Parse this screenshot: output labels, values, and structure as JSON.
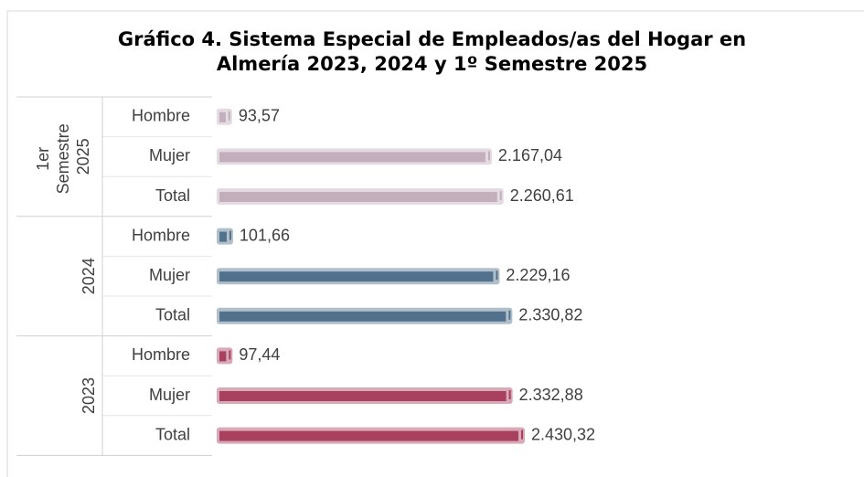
{
  "chart_data": {
    "type": "bar",
    "title": "Gráfico 4. Sistema Especial de Empleados/as del Hogar en Almería 2023, 2024 y 1º Semestre 2025",
    "groups": [
      {
        "name": "1er Semestre 2025",
        "color": "#c3aebc",
        "categories": [
          "Hombre",
          "Mujer",
          "Total"
        ],
        "values": [
          93.57,
          2167.04,
          2260.61
        ],
        "value_labels": [
          "93,57",
          "2.167,04",
          "2.260,61"
        ]
      },
      {
        "name": "2024",
        "color": "#52718c",
        "categories": [
          "Hombre",
          "Mujer",
          "Total"
        ],
        "values": [
          101.66,
          2229.16,
          2330.82
        ],
        "value_labels": [
          "101,66",
          "2.229,16",
          "2.330,82"
        ]
      },
      {
        "name": "2023",
        "color": "#a8415f",
        "categories": [
          "Hombre",
          "Mujer",
          "Total"
        ],
        "values": [
          97.44,
          2332.88,
          2430.32
        ],
        "value_labels": [
          "97,44",
          "2.332,88",
          "2.430,32"
        ]
      }
    ]
  }
}
